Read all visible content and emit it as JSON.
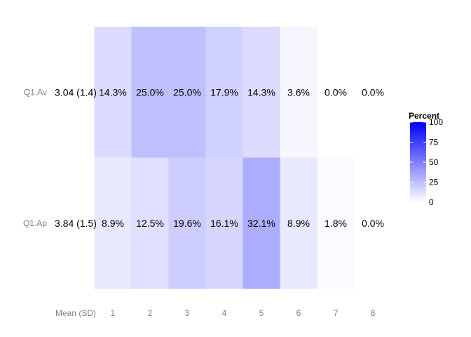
{
  "chart_data": {
    "type": "heatmap",
    "title": "",
    "xlabel": "",
    "ylabel": "",
    "x_header": "Mean (SD)",
    "categories": [
      "1",
      "2",
      "3",
      "4",
      "5",
      "6",
      "7",
      "8"
    ],
    "rows": [
      {
        "label": "Q1.Av",
        "mean_sd": "3.04 (1.4)",
        "values": [
          14.3,
          25.0,
          25.0,
          17.9,
          14.3,
          3.6,
          0.0,
          0.0
        ],
        "value_labels": [
          "14.3%",
          "25.0%",
          "25.0%",
          "17.9%",
          "14.3%",
          "3.6%",
          "0.0%",
          "0.0%"
        ]
      },
      {
        "label": "Q1.Ap",
        "mean_sd": "3.84 (1.5)",
        "values": [
          8.9,
          12.5,
          19.6,
          16.1,
          32.1,
          8.9,
          1.8,
          0.0
        ],
        "value_labels": [
          "8.9%",
          "12.5%",
          "19.6%",
          "16.1%",
          "32.1%",
          "8.9%",
          "1.8%",
          "0.0%"
        ]
      }
    ],
    "legend": {
      "title": "Percent",
      "ticks": [
        "100",
        "75",
        "50",
        "25",
        "0"
      ],
      "tick_values": [
        100,
        75,
        50,
        25,
        0
      ],
      "range": [
        0,
        100
      ],
      "color_low": "#ffffff",
      "color_high": "#0000ff",
      "placement": "right"
    },
    "grid": false
  }
}
